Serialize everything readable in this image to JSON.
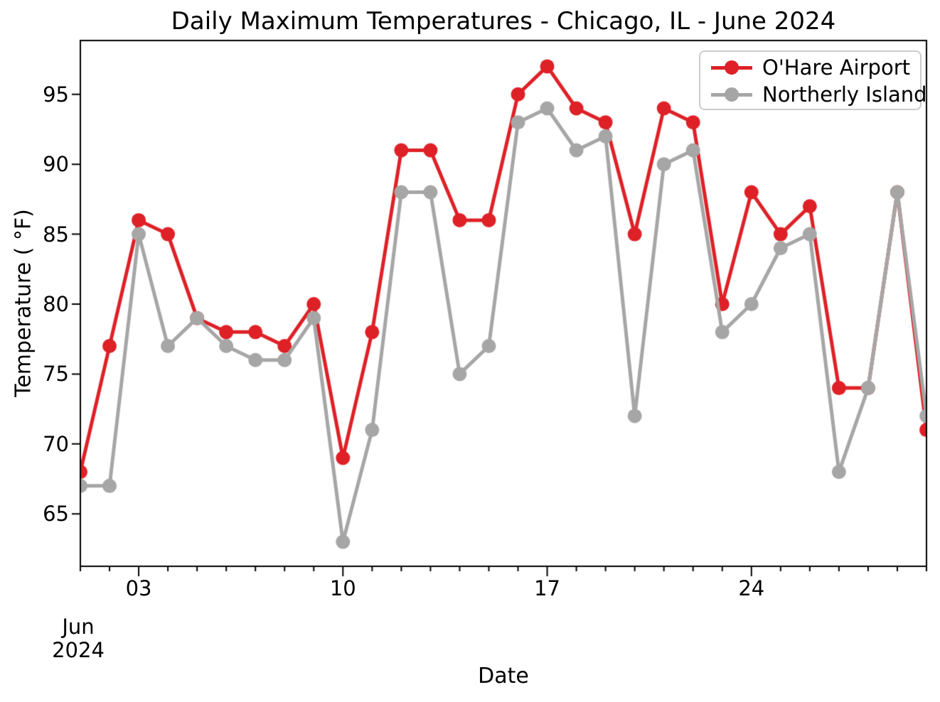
{
  "chart_data": {
    "type": "line",
    "title": "Daily Maximum Temperatures - Chicago, IL - June 2024",
    "xlabel": "Date",
    "ylabel": "Temperature ( °F)",
    "x_days": [
      1,
      2,
      3,
      4,
      5,
      6,
      7,
      8,
      9,
      10,
      11,
      12,
      13,
      14,
      15,
      16,
      17,
      18,
      19,
      20,
      21,
      22,
      23,
      24,
      25,
      26,
      27,
      28,
      29,
      30
    ],
    "series": [
      {
        "name": "O'Hare Airport",
        "color": "#de2127",
        "values": [
          68,
          77,
          86,
          85,
          79,
          78,
          78,
          77,
          80,
          69,
          78,
          91,
          91,
          86,
          86,
          95,
          97,
          94,
          93,
          85,
          94,
          93,
          80,
          88,
          85,
          87,
          74,
          74,
          88,
          71
        ]
      },
      {
        "name": "Northerly Island",
        "color": "#a6a6a6",
        "values": [
          67,
          67,
          85,
          77,
          79,
          77,
          76,
          76,
          79,
          63,
          71,
          88,
          88,
          75,
          77,
          93,
          94,
          91,
          92,
          72,
          90,
          91,
          78,
          80,
          84,
          85,
          68,
          74,
          88,
          72
        ]
      }
    ],
    "xlim": [
      1,
      30
    ],
    "ylim": [
      61.25,
      98.85
    ],
    "y_ticks": [
      65,
      70,
      75,
      80,
      85,
      90,
      95
    ],
    "x_major_ticks": [
      {
        "day": 3,
        "label": "03"
      },
      {
        "day": 10,
        "label": "10"
      },
      {
        "day": 17,
        "label": "17"
      },
      {
        "day": 24,
        "label": "24"
      }
    ],
    "x_offset_label": [
      "Jun",
      "2024"
    ],
    "legend_position": "upper right",
    "grid": false,
    "axis_color": "#000000"
  }
}
